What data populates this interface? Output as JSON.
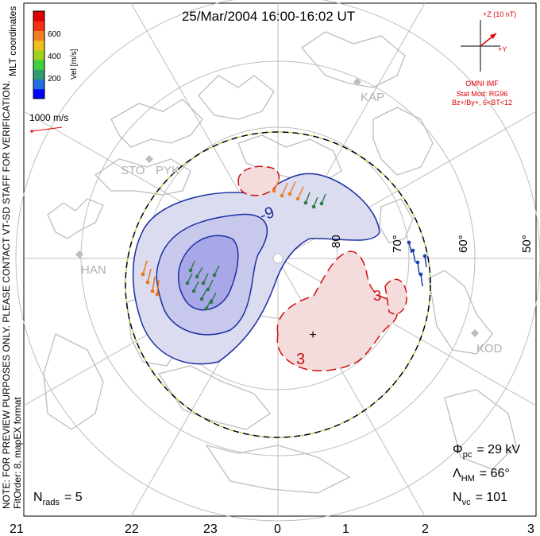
{
  "title": "25/Mar/2004 16:00-16:02 UT",
  "colorbar": {
    "axis_label": "Vel [m/s]",
    "ticks": [
      "600",
      "400",
      "200"
    ],
    "colors": [
      "#0000ff",
      "#1f6fe0",
      "#2f9f6f",
      "#3fcf3f",
      "#a0d020",
      "#f0c020",
      "#f08020",
      "#f03010",
      "#e00000"
    ]
  },
  "coord_label": "MLT coordinates",
  "scale_vector_label": "1000 m/s",
  "side_note_1": "NOTE: FOR PREVIEW PURPOSES ONLY. PLEASE CONTACT VT-SD STAFF FOR VERIFICATION.",
  "side_note_2": "FitOrder: 8, mapEX format",
  "imf": {
    "bz_label": "+Z (10 nT)",
    "by_label": "+Y",
    "source": "OMNI IMF",
    "model": "Stat Mod: RG96",
    "condition": "Bz+/By+, 6<BT<12"
  },
  "stations": [
    "STO",
    "PYK",
    "HAN",
    "KAP",
    "KOD"
  ],
  "latitude_labels": [
    "80",
    "70°",
    "60°",
    "50°"
  ],
  "contour_labels": [
    "-9",
    "3",
    "3"
  ],
  "mlt_labels": [
    "21",
    "22",
    "23",
    "0",
    "1",
    "2",
    "3"
  ],
  "stats": {
    "phi_pc_symbol": "Φ",
    "phi_pc_sub": "pc",
    "phi_pc_value": "= 29 kV",
    "lambda_hm_symbol": "Λ",
    "lambda_hm_sub": "HM",
    "lambda_hm_value": "= 66°",
    "n_vc_symbol": "N",
    "n_vc_sub": "vc",
    "n_vc_value": "= 101",
    "n_rads_symbol": "N",
    "n_rads_sub": "rads",
    "n_rads_value": "= 5"
  },
  "colors": {
    "negative_fill": "#dcdcf0",
    "negative_contour": "#1a2fa0",
    "positive_fill": "#f5dcdc",
    "positive_contour": "#d01010",
    "grid": "#bdbdbd",
    "coast": "#bdbdbd",
    "imf_text": "#dd0000"
  }
}
